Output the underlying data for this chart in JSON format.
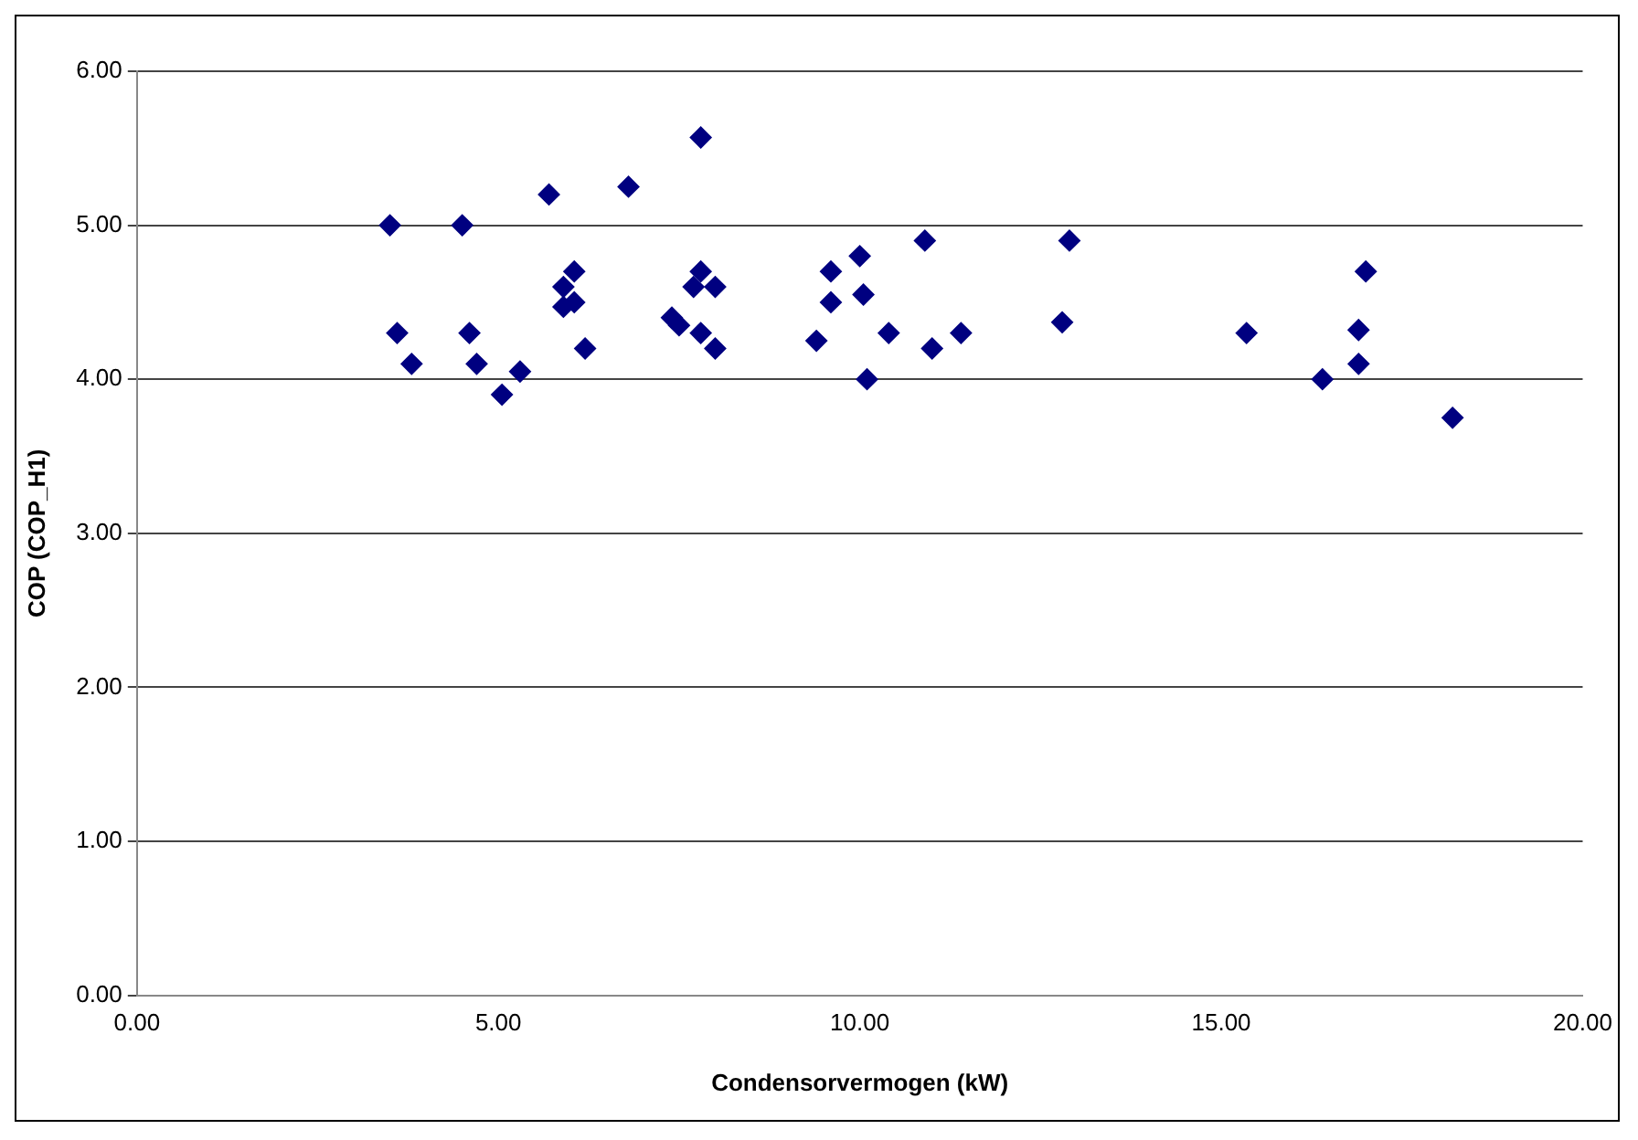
{
  "chart_data": {
    "type": "scatter",
    "xlabel": "Condensorvermogen (kW)",
    "ylabel": "COP (COP_H1)",
    "x": [
      3.5,
      3.6,
      3.8,
      4.5,
      4.6,
      4.7,
      5.05,
      5.3,
      5.7,
      5.9,
      5.9,
      6.05,
      6.05,
      6.2,
      6.8,
      7.4,
      7.5,
      7.7,
      7.8,
      7.8,
      7.8,
      8.0,
      8.0,
      9.4,
      9.6,
      9.6,
      10.0,
      10.05,
      10.1,
      10.4,
      10.9,
      11.0,
      11.4,
      12.8,
      12.9,
      15.35,
      16.4,
      16.9,
      16.9,
      17.0,
      18.2
    ],
    "values": [
      5.0,
      4.3,
      4.1,
      5.0,
      4.3,
      4.1,
      3.9,
      4.05,
      5.2,
      4.6,
      4.47,
      4.7,
      4.5,
      4.2,
      5.25,
      4.4,
      4.35,
      4.6,
      4.7,
      5.57,
      4.3,
      4.6,
      4.2,
      4.25,
      4.7,
      4.5,
      4.8,
      4.55,
      4.0,
      4.3,
      4.9,
      4.2,
      4.3,
      4.37,
      4.9,
      4.3,
      4.0,
      4.32,
      4.1,
      4.7,
      3.75
    ],
    "color": "#000080",
    "marker": "diamond",
    "grid": "y",
    "legend": false,
    "xlim": [
      0,
      20
    ],
    "xticks": [
      {
        "value": 0,
        "label": "0.00"
      },
      {
        "value": 5,
        "label": "5.00"
      },
      {
        "value": 10,
        "label": "10.00"
      },
      {
        "value": 15,
        "label": "15.00"
      },
      {
        "value": 20,
        "label": "20.00"
      }
    ],
    "ylim": [
      0,
      6
    ],
    "yticks": [
      {
        "value": 0,
        "label": "0.00"
      },
      {
        "value": 1,
        "label": "1.00"
      },
      {
        "value": 2,
        "label": "2.00"
      },
      {
        "value": 3,
        "label": "3.00"
      },
      {
        "value": 4,
        "label": "4.00"
      },
      {
        "value": 5,
        "label": "5.00"
      },
      {
        "value": 6,
        "label": "6.00"
      }
    ]
  }
}
